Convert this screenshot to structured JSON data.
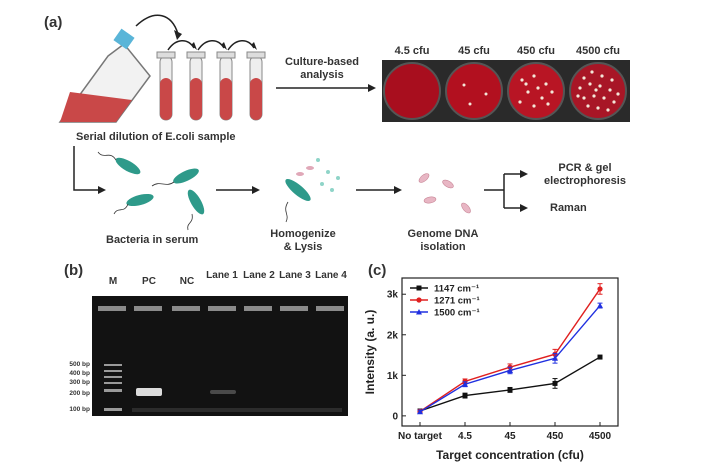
{
  "panel_a": {
    "letter": "(a)",
    "serial_dilution": "Serial dilution of E.coli  sample",
    "culture_analysis": "Culture-based analysis",
    "plates": [
      "4.5 cfu",
      "45 cfu",
      "450 cfu",
      "4500 cfu"
    ],
    "bacteria_serum": "Bacteria in serum",
    "homogenize": "Homogenize & Lysis",
    "genome": "Genome DNA isolation",
    "pcr": "PCR & gel electrophoresis",
    "raman": "Raman"
  },
  "panel_b": {
    "letter": "(b)",
    "lanes": [
      "M",
      "PC",
      "NC",
      "Lane 1",
      "Lane 2",
      "Lane 3",
      "Lane 4"
    ],
    "markers": [
      "500 bp",
      "400 bp",
      "300 bp",
      "200 bp",
      "100 bp"
    ]
  },
  "panel_c": {
    "letter": "(c)"
  },
  "chart_data": {
    "type": "line",
    "xlabel": "Target concentration (cfu)",
    "ylabel": "Intensity (a. u.)",
    "categories": [
      "No target",
      "4.5",
      "45",
      "450",
      "4500"
    ],
    "yticks": [
      "0",
      "1k",
      "2k",
      "3k"
    ],
    "ylim": [
      -250,
      3400
    ],
    "legend_position": "top-left",
    "series": [
      {
        "name": "1147 cm⁻¹",
        "color": "#111111",
        "marker": "square",
        "values": [
          120,
          500,
          640,
          800,
          1450
        ],
        "errors": [
          40,
          60,
          60,
          120,
          20
        ]
      },
      {
        "name": "1271 cm⁻¹",
        "color": "#e02020",
        "marker": "circle",
        "values": [
          110,
          850,
          1200,
          1520,
          3130
        ],
        "errors": [
          40,
          60,
          80,
          120,
          130
        ]
      },
      {
        "name": "1500 cm⁻¹",
        "color": "#2030e0",
        "marker": "triangle",
        "values": [
          100,
          780,
          1120,
          1420,
          2720
        ],
        "errors": [
          40,
          60,
          80,
          120,
          60
        ]
      }
    ]
  }
}
